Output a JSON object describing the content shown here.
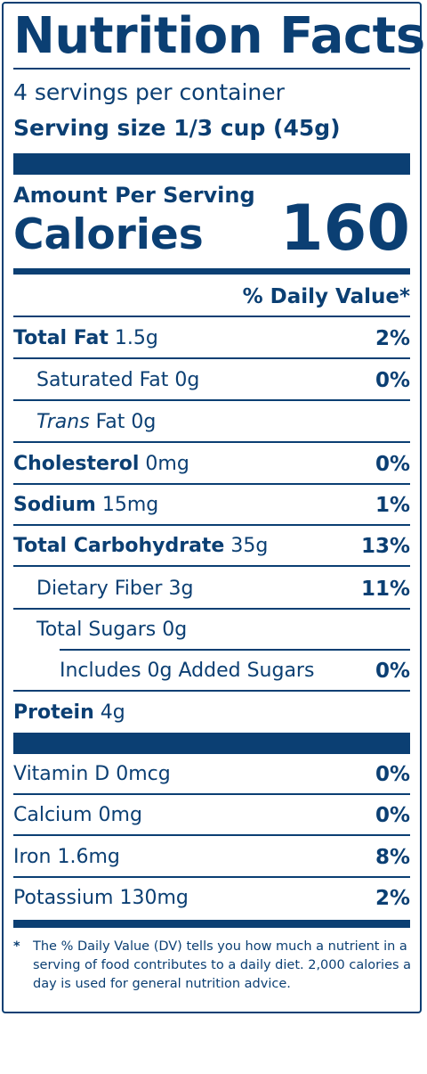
{
  "title": "Nutrition Facts",
  "servings_per_container": "4 servings per container",
  "serving_size": "Serving size 1/3 cup (45g)",
  "amount_per_serving": "Amount Per Serving",
  "calories_label": "Calories",
  "calories_value": "160",
  "daily_value_header": "% Daily Value*",
  "nutrients": [
    {
      "name": "Total Fat",
      "amount": "1.5g",
      "dv": "2%"
    },
    {
      "name": "Saturated Fat",
      "amount": "0g",
      "dv": "0%"
    },
    {
      "name": "Trans",
      "suffix": " Fat",
      "amount": "0g",
      "dv": ""
    },
    {
      "name": "Cholesterol",
      "amount": "0mg",
      "dv": "0%"
    },
    {
      "name": "Sodium",
      "amount": "15mg",
      "dv": "1%"
    },
    {
      "name": "Total Carbohydrate",
      "amount": "35g",
      "dv": "13%"
    },
    {
      "name": "Dietary Fiber",
      "amount": "3g",
      "dv": "11%"
    },
    {
      "name": "Total Sugars",
      "amount": "0g",
      "dv": ""
    },
    {
      "name": "Includes 0g Added Sugars",
      "amount": "",
      "dv": "0%"
    },
    {
      "name": "Protein",
      "amount": "4g",
      "dv": ""
    }
  ],
  "vitamins": [
    {
      "name": "Vitamin D",
      "amount": "0mcg",
      "dv": "0%"
    },
    {
      "name": "Calcium",
      "amount": "0mg",
      "dv": "0%"
    },
    {
      "name": "Iron",
      "amount": "1.6mg",
      "dv": "8%"
    },
    {
      "name": "Potassium",
      "amount": "130mg",
      "dv": "2%"
    }
  ],
  "footnote_star": "*",
  "footnote": "The % Daily Value (DV) tells you how much a nutrient in a serving of food contributes to a daily diet. 2,000 calories a day is used for general nutrition advice.",
  "colors": {
    "ink": "#0b3f73",
    "background": "#ffffff"
  }
}
